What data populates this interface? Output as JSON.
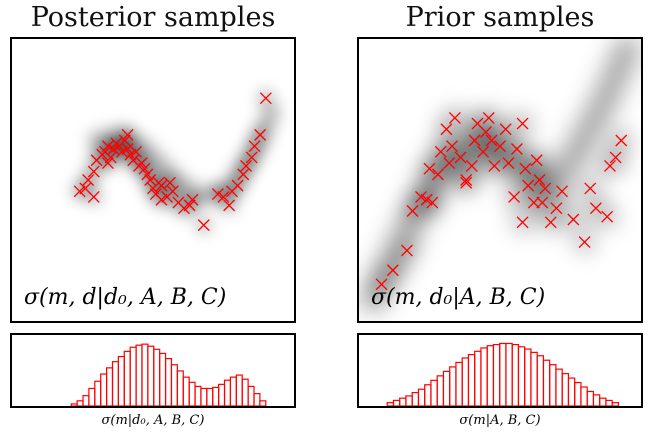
{
  "panels": {
    "left_title": "Posterior samples",
    "right_title": "Prior samples",
    "left_main_label": "σ(m, d|d₀, A, B, C)",
    "right_main_label": "σ(m, d₀|A, B, C)",
    "left_hist_label": "σ(m|d₀, A, B, C)",
    "right_hist_label": "σ(m|A, B, C)"
  },
  "colors": {
    "marker": "#ff0000",
    "density": "#000000",
    "frame": "#000000"
  },
  "chart_data": [
    {
      "type": "scatter",
      "title": "Posterior samples",
      "annotation": "σ(m, d|d₀, A, B, C)",
      "xlim": [
        0,
        1
      ],
      "ylim": [
        0,
        1
      ],
      "background": "grayscale density",
      "density_ridge": [
        [
          0.3,
          0.64
        ],
        [
          0.38,
          0.66
        ],
        [
          0.46,
          0.62
        ],
        [
          0.56,
          0.52
        ],
        [
          0.66,
          0.44
        ],
        [
          0.77,
          0.47
        ],
        [
          0.87,
          0.62
        ],
        [
          0.92,
          0.74
        ]
      ],
      "series": [
        {
          "marker": "x",
          "x": [
            0.24,
            0.26,
            0.27,
            0.29,
            0.3,
            0.32,
            0.33,
            0.34,
            0.35,
            0.36,
            0.37,
            0.38,
            0.39,
            0.4,
            0.41,
            0.42,
            0.43,
            0.44,
            0.45,
            0.46,
            0.47,
            0.48,
            0.49,
            0.5,
            0.51,
            0.52,
            0.53,
            0.55,
            0.57,
            0.59,
            0.61,
            0.64,
            0.68,
            0.73,
            0.75,
            0.77,
            0.78,
            0.8,
            0.82,
            0.83,
            0.85,
            0.86,
            0.88,
            0.9,
            0.29,
            0.34,
            0.41,
            0.53,
            0.56,
            0.63
          ],
          "y": [
            0.46,
            0.47,
            0.5,
            0.53,
            0.57,
            0.59,
            0.6,
            0.62,
            0.58,
            0.61,
            0.63,
            0.62,
            0.6,
            0.64,
            0.61,
            0.59,
            0.57,
            0.6,
            0.55,
            0.56,
            0.54,
            0.52,
            0.5,
            0.47,
            0.45,
            0.49,
            0.43,
            0.44,
            0.46,
            0.42,
            0.4,
            0.43,
            0.34,
            0.45,
            0.44,
            0.41,
            0.46,
            0.48,
            0.52,
            0.55,
            0.58,
            0.62,
            0.66,
            0.79,
            0.44,
            0.56,
            0.66,
            0.48,
            0.49,
            0.41
          ]
        }
      ]
    },
    {
      "type": "scatter",
      "title": "Prior samples",
      "annotation": "σ(m, d₀|A, B, C)",
      "xlim": [
        0,
        1
      ],
      "ylim": [
        0,
        1
      ],
      "background": "grayscale density",
      "density_ridge": [
        [
          0.05,
          0.08
        ],
        [
          0.15,
          0.28
        ],
        [
          0.28,
          0.52
        ],
        [
          0.42,
          0.64
        ],
        [
          0.55,
          0.56
        ],
        [
          0.66,
          0.5
        ],
        [
          0.75,
          0.56
        ],
        [
          0.87,
          0.78
        ],
        [
          0.95,
          0.96
        ]
      ],
      "series": [
        {
          "marker": "x",
          "x": [
            0.08,
            0.12,
            0.17,
            0.19,
            0.22,
            0.25,
            0.26,
            0.28,
            0.29,
            0.31,
            0.32,
            0.33,
            0.34,
            0.36,
            0.38,
            0.4,
            0.41,
            0.42,
            0.44,
            0.45,
            0.46,
            0.47,
            0.48,
            0.5,
            0.52,
            0.53,
            0.55,
            0.56,
            0.58,
            0.59,
            0.6,
            0.62,
            0.63,
            0.64,
            0.65,
            0.66,
            0.68,
            0.7,
            0.72,
            0.76,
            0.8,
            0.82,
            0.84,
            0.88,
            0.89,
            0.91,
            0.93,
            0.24,
            0.38,
            0.58
          ],
          "y": [
            0.13,
            0.18,
            0.25,
            0.39,
            0.44,
            0.54,
            0.42,
            0.52,
            0.6,
            0.68,
            0.56,
            0.62,
            0.72,
            0.58,
            0.5,
            0.55,
            0.64,
            0.7,
            0.6,
            0.67,
            0.72,
            0.64,
            0.55,
            0.62,
            0.68,
            0.56,
            0.44,
            0.61,
            0.7,
            0.54,
            0.48,
            0.42,
            0.57,
            0.5,
            0.42,
            0.47,
            0.35,
            0.4,
            0.46,
            0.36,
            0.28,
            0.47,
            0.4,
            0.37,
            0.55,
            0.58,
            0.64,
            0.43,
            0.49,
            0.35
          ]
        }
      ]
    },
    {
      "type": "bar",
      "title": "",
      "xlabel": "σ(m|d₀, A, B, C)",
      "style": "outline histogram",
      "values": [
        2,
        5,
        10,
        17,
        24,
        31,
        37,
        43,
        48,
        53,
        57,
        59,
        60,
        58,
        55,
        51,
        46,
        40,
        34,
        28,
        23,
        19,
        17,
        17,
        18,
        21,
        25,
        28,
        30,
        26,
        19,
        12,
        5
      ],
      "ylim": [
        0,
        65
      ]
    },
    {
      "type": "bar",
      "title": "",
      "xlabel": "σ(m|A, B, C)",
      "style": "outline histogram",
      "values": [
        3,
        5,
        7,
        9,
        12,
        15,
        19,
        23,
        27,
        31,
        35,
        39,
        43,
        46,
        49,
        52,
        54,
        55,
        56,
        56,
        55,
        53,
        51,
        48,
        45,
        41,
        37,
        33,
        29,
        25,
        21,
        17,
        13,
        10,
        7,
        5,
        3
      ],
      "ylim": [
        0,
        60
      ]
    }
  ]
}
